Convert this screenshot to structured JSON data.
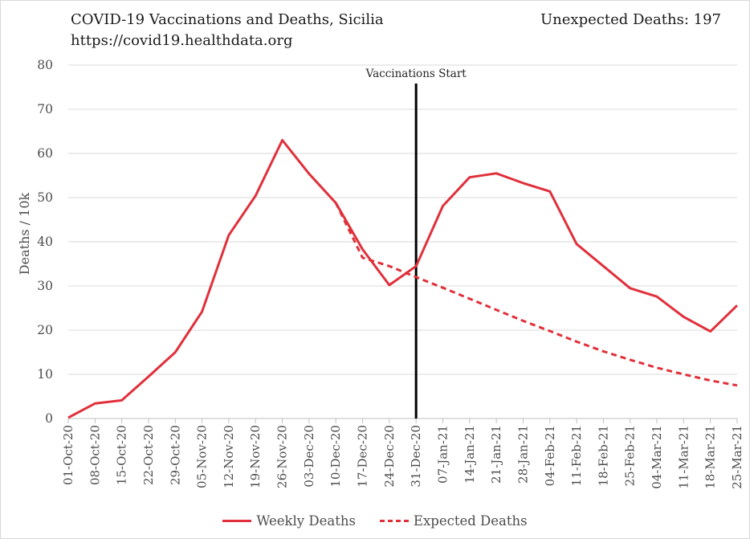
{
  "header": {
    "title": "COVID-19 Vaccinations and Deaths, Sicilia",
    "source": "https://covid19.healthdata.org",
    "unexpected_deaths": "Unexpected Deaths: 197"
  },
  "colors": {
    "series": "#e0303b",
    "grid": "#d9d9d9",
    "vline": "#000000"
  },
  "chart_data": {
    "type": "line",
    "title": "COVID-19 Vaccinations and Deaths, Sicilia",
    "ylabel": "Deaths / 10k",
    "xlabel": "",
    "ylim": [
      0,
      80
    ],
    "yticks": [
      "0",
      "10",
      "20",
      "30",
      "40",
      "50",
      "60",
      "70",
      "80"
    ],
    "grid": true,
    "legend_position": "bottom",
    "x": [
      "01-Oct-20",
      "08-Oct-20",
      "15-Oct-20",
      "22-Oct-20",
      "29-Oct-20",
      "05-Nov-20",
      "12-Nov-20",
      "19-Nov-20",
      "26-Nov-20",
      "03-Dec-20",
      "10-Dec-20",
      "17-Dec-20",
      "24-Dec-20",
      "31-Dec-20",
      "07-Jan-21",
      "14-Jan-21",
      "21-Jan-21",
      "28-Jan-21",
      "04-Feb-21",
      "11-Feb-21",
      "18-Feb-21",
      "25-Feb-21",
      "04-Mar-21",
      "11-Mar-21",
      "18-Mar-21",
      "25-Mar-21"
    ],
    "series": [
      {
        "name": "Weekly Deaths",
        "style": "solid",
        "values": [
          0.2,
          3.4,
          4.1,
          9.5,
          15.0,
          24.2,
          41.5,
          50.4,
          63.0,
          55.4,
          48.8,
          38.3,
          30.2,
          34.5,
          48.1,
          54.6,
          55.5,
          53.3,
          51.4,
          39.5,
          34.5,
          29.5,
          27.6,
          23.0,
          19.7,
          25.6
        ]
      },
      {
        "name": "Expected Deaths",
        "style": "dashed",
        "values": [
          null,
          null,
          null,
          null,
          null,
          null,
          null,
          null,
          null,
          null,
          48.8,
          36.4,
          34.5,
          32.0,
          29.6,
          27.1,
          24.6,
          22.1,
          19.8,
          17.4,
          15.2,
          13.3,
          11.5,
          10.0,
          8.6,
          7.5
        ]
      }
    ],
    "annotations": [
      {
        "text": "Vaccinations Start",
        "x": "31-Dec-20"
      }
    ]
  }
}
